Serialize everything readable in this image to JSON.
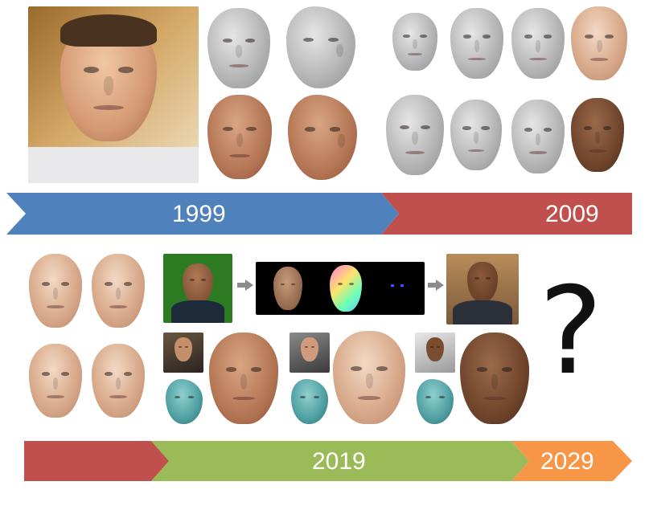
{
  "timeline_top": {
    "segments": [
      {
        "label": "1999",
        "color": "#4f81bd"
      },
      {
        "label": "2009",
        "color": "#c0504d"
      }
    ]
  },
  "timeline_bottom": {
    "segments": [
      {
        "label": "",
        "color": "#c0504d"
      },
      {
        "label": "2019",
        "color": "#9bbb59"
      },
      {
        "label": "2029",
        "color": "#f79646"
      }
    ]
  },
  "question_mark": "?",
  "colors": {
    "blue": "#4f81bd",
    "red": "#c0504d",
    "green": "#9bbb59",
    "orange": "#f79646",
    "arrow_gray": "#8c8c8c"
  }
}
